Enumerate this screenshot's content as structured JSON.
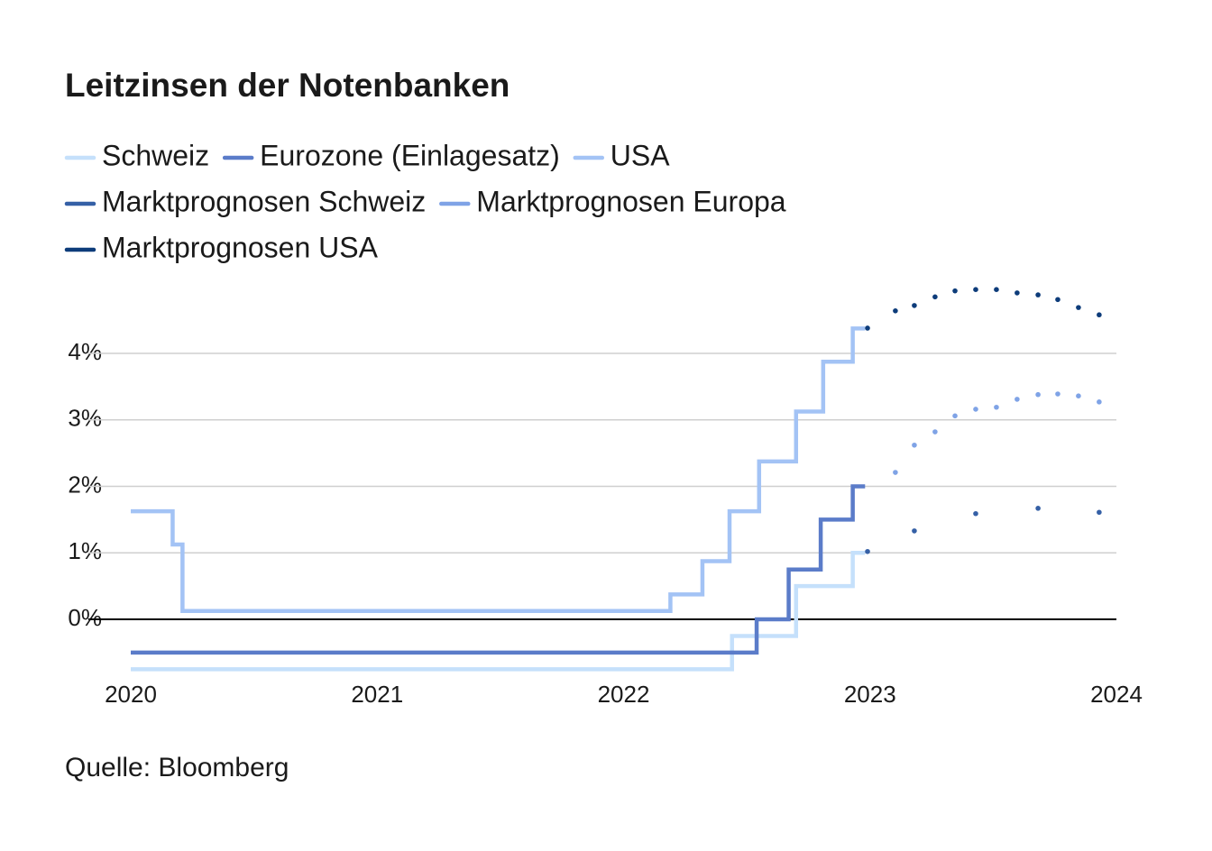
{
  "chart_data": {
    "type": "line",
    "title": "Leitzinsen der Notenbanken",
    "source": "Quelle: Bloomberg",
    "xlim": [
      2020,
      2024
    ],
    "xticks": [
      2020,
      2021,
      2022,
      2023,
      2024
    ],
    "ylim": [
      -0.8,
      5
    ],
    "yticks": [
      {
        "value": 0,
        "label": "0%"
      },
      {
        "value": 1,
        "label": "1%"
      },
      {
        "value": 2,
        "label": "2%"
      },
      {
        "value": 3,
        "label": "3%"
      },
      {
        "value": 4,
        "label": "4%"
      }
    ],
    "grid": true,
    "series": [
      {
        "name": "Schweiz",
        "color": "#c5e0fb",
        "style": "solid",
        "x": [
          2020,
          2022.44,
          2022.44,
          2022.7,
          2022.7,
          2022.93,
          2022.93,
          2022.98
        ],
        "values": [
          -0.75,
          -0.75,
          -0.25,
          -0.25,
          0.5,
          0.5,
          1,
          1
        ]
      },
      {
        "name": "Eurozone (Einlagesatz)",
        "color": "#5b7cc9",
        "style": "solid",
        "x": [
          2020,
          2022.54,
          2022.54,
          2022.67,
          2022.67,
          2022.8,
          2022.8,
          2022.93,
          2022.93,
          2022.98
        ],
        "values": [
          -0.5,
          -0.5,
          0,
          0,
          0.75,
          0.75,
          1.5,
          1.5,
          2,
          2
        ]
      },
      {
        "name": "USA",
        "color": "#a3c3f5",
        "style": "solid",
        "x": [
          2020,
          2020.17,
          2020.17,
          2020.21,
          2020.21,
          2022.19,
          2022.19,
          2022.32,
          2022.32,
          2022.43,
          2022.43,
          2022.55,
          2022.55,
          2022.7,
          2022.7,
          2022.81,
          2022.81,
          2022.93,
          2022.93,
          2022.98
        ],
        "values": [
          1.625,
          1.625,
          1.125,
          1.125,
          0.125,
          0.125,
          0.375,
          0.375,
          0.875,
          0.875,
          1.625,
          1.625,
          2.375,
          2.375,
          3.125,
          3.125,
          3.875,
          3.875,
          4.375,
          4.375
        ]
      },
      {
        "name": "Marktprognosen Schweiz",
        "color": "#3560a6",
        "style": "dotted",
        "x": [
          2022.99,
          2023.18,
          2023.429,
          2023.682,
          2023.93
        ],
        "values": [
          1.02,
          1.33,
          1.59,
          1.67,
          1.61
        ]
      },
      {
        "name": "Marktprognosen Europa",
        "color": "#7fa3e6",
        "style": "dotted",
        "x": [
          2023.103,
          2023.18,
          2023.264,
          2023.345,
          2023.429,
          2023.513,
          2023.597,
          2023.682,
          2023.762,
          2023.846,
          2023.93
        ],
        "values": [
          2.21,
          2.62,
          2.82,
          3.06,
          3.16,
          3.19,
          3.31,
          3.38,
          3.39,
          3.36,
          3.27
        ]
      },
      {
        "name": "Marktprognosen USA",
        "color": "#0d3c7a",
        "style": "dotted",
        "x": [
          2022.99,
          2023.103,
          2023.18,
          2023.264,
          2023.345,
          2023.429,
          2023.513,
          2023.597,
          2023.682,
          2023.762,
          2023.846,
          2023.93
        ],
        "values": [
          4.38,
          4.64,
          4.72,
          4.85,
          4.94,
          4.96,
          4.96,
          4.91,
          4.88,
          4.81,
          4.69,
          4.58
        ]
      }
    ]
  }
}
